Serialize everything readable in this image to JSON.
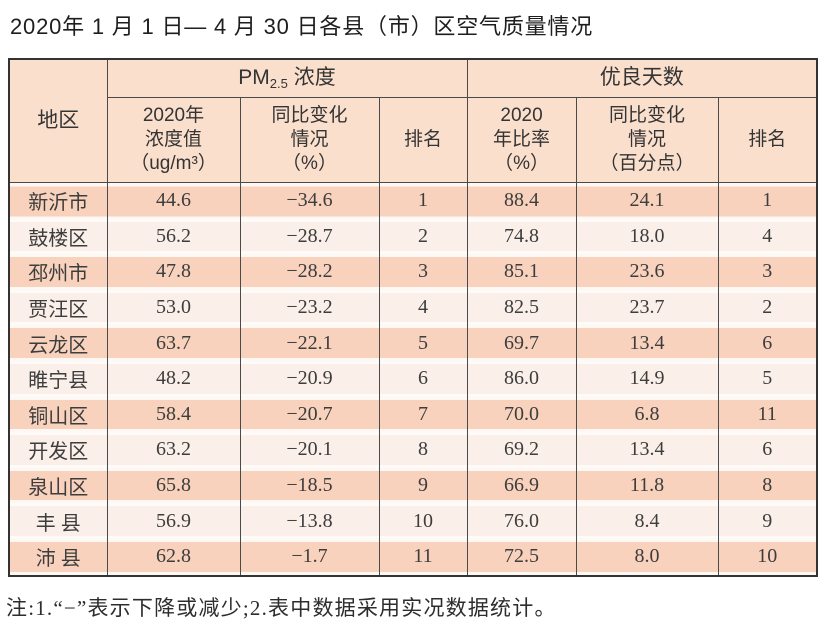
{
  "title": "2020年 1 月 1 日— 4 月 30 日各县（市）区空气质量情况",
  "table": {
    "region_header": "地区",
    "pm_group": {
      "prefix": "PM",
      "sub": "2.5",
      "suffix": " 浓度"
    },
    "good_group": "优良天数",
    "sub_headers": [
      "2020年\n浓度值\n（ug/m³）",
      "同比变化\n情况\n（%）",
      "排名",
      "2020\n年比率\n（%）",
      "同比变化\n情况\n（百分点）",
      "排名"
    ],
    "rows": [
      {
        "region": "新沂市",
        "pm_value": "44.6",
        "pm_change": "−34.6",
        "pm_rank": "1",
        "good_rate": "88.4",
        "good_change": "24.1",
        "good_rank": "1"
      },
      {
        "region": "鼓楼区",
        "pm_value": "56.2",
        "pm_change": "−28.7",
        "pm_rank": "2",
        "good_rate": "74.8",
        "good_change": "18.0",
        "good_rank": "4"
      },
      {
        "region": "邳州市",
        "pm_value": "47.8",
        "pm_change": "−28.2",
        "pm_rank": "3",
        "good_rate": "85.1",
        "good_change": "23.6",
        "good_rank": "3"
      },
      {
        "region": "贾汪区",
        "pm_value": "53.0",
        "pm_change": "−23.2",
        "pm_rank": "4",
        "good_rate": "82.5",
        "good_change": "23.7",
        "good_rank": "2"
      },
      {
        "region": "云龙区",
        "pm_value": "63.7",
        "pm_change": "−22.1",
        "pm_rank": "5",
        "good_rate": "69.7",
        "good_change": "13.4",
        "good_rank": "6"
      },
      {
        "region": "睢宁县",
        "pm_value": "48.2",
        "pm_change": "−20.9",
        "pm_rank": "6",
        "good_rate": "86.0",
        "good_change": "14.9",
        "good_rank": "5"
      },
      {
        "region": "铜山区",
        "pm_value": "58.4",
        "pm_change": "−20.7",
        "pm_rank": "7",
        "good_rate": "70.0",
        "good_change": "6.8",
        "good_rank": "11"
      },
      {
        "region": "开发区",
        "pm_value": "63.2",
        "pm_change": "−20.1",
        "pm_rank": "8",
        "good_rate": "69.2",
        "good_change": "13.4",
        "good_rank": "6"
      },
      {
        "region": "泉山区",
        "pm_value": "65.8",
        "pm_change": "−18.5",
        "pm_rank": "9",
        "good_rate": "66.9",
        "good_change": "11.8",
        "good_rank": "8"
      },
      {
        "region": "丰 县",
        "pm_value": "56.9",
        "pm_change": "−13.8",
        "pm_rank": "10",
        "good_rate": "76.0",
        "good_change": "8.4",
        "good_rank": "9"
      },
      {
        "region": "沛 县",
        "pm_value": "62.8",
        "pm_change": "−1.7",
        "pm_rank": "11",
        "good_rate": "72.5",
        "good_change": "8.0",
        "good_rank": "10"
      }
    ]
  },
  "note": "注:1.“−”表示下降或减少;2.表中数据采用实况数据统计。",
  "colors": {
    "header_bg": "#fadfcd",
    "row_dark_bg": "#f8d2bd",
    "row_light_bg": "#fbf0e9",
    "border": "#4a4a4a",
    "outer_border": "#333333",
    "text": "#3d3d3d"
  }
}
